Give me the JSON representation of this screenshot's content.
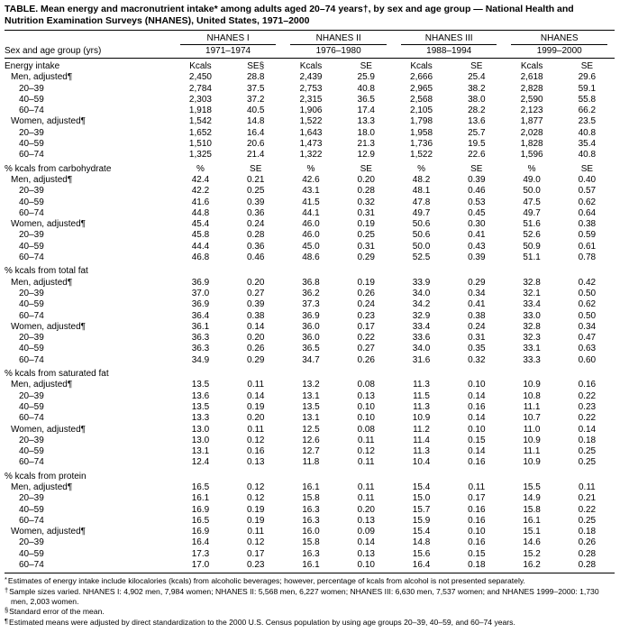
{
  "page": {
    "title": "TABLE. Mean energy and macronutrient intake* among adults aged 20–74 years†, by sex and age group — National Health and Nutrition Examination Surveys (NHANES), United States, 1971–2000"
  },
  "table": {
    "row_header": "Sex and age group (yrs)",
    "groups": [
      {
        "name": "NHANES I",
        "years": "1971–1974"
      },
      {
        "name": "NHANES II",
        "years": "1976–1980"
      },
      {
        "name": "NHANES III",
        "years": "1988–1994"
      },
      {
        "name": "NHANES",
        "years": "1999–2000"
      }
    ],
    "sections": [
      {
        "label": "Energy intake",
        "units": [
          "Kcals",
          "SE§",
          "Kcals",
          "SE",
          "Kcals",
          "SE",
          "Kcals",
          "SE"
        ],
        "rows": [
          {
            "label": "Men, adjusted¶",
            "indent": 1,
            "values": [
              "2,450",
              "28.8",
              "2,439",
              "25.9",
              "2,666",
              "25.4",
              "2,618",
              "29.6"
            ]
          },
          {
            "label": "20–39",
            "indent": 2,
            "values": [
              "2,784",
              "37.5",
              "2,753",
              "40.8",
              "2,965",
              "38.2",
              "2,828",
              "59.1"
            ]
          },
          {
            "label": "40–59",
            "indent": 2,
            "values": [
              "2,303",
              "37.2",
              "2,315",
              "36.5",
              "2,568",
              "38.0",
              "2,590",
              "55.8"
            ]
          },
          {
            "label": "60–74",
            "indent": 2,
            "values": [
              "1,918",
              "40.5",
              "1,906",
              "17.4",
              "2,105",
              "28.2",
              "2,123",
              "66.2"
            ]
          },
          {
            "label": "Women, adjusted¶",
            "indent": 1,
            "values": [
              "1,542",
              "14.8",
              "1,522",
              "13.3",
              "1,798",
              "13.6",
              "1,877",
              "23.5"
            ]
          },
          {
            "label": "20–39",
            "indent": 2,
            "values": [
              "1,652",
              "16.4",
              "1,643",
              "18.0",
              "1,958",
              "25.7",
              "2,028",
              "40.8"
            ]
          },
          {
            "label": "40–59",
            "indent": 2,
            "values": [
              "1,510",
              "20.6",
              "1,473",
              "21.3",
              "1,736",
              "19.5",
              "1,828",
              "35.4"
            ]
          },
          {
            "label": "60–74",
            "indent": 2,
            "values": [
              "1,325",
              "21.4",
              "1,322",
              "12.9",
              "1,522",
              "22.6",
              "1,596",
              "40.8"
            ]
          }
        ]
      },
      {
        "label": "% kcals from carbohydrate",
        "units": [
          "%",
          "SE",
          "%",
          "SE",
          "%",
          "SE",
          "%",
          "SE"
        ],
        "rows": [
          {
            "label": "Men, adjusted¶",
            "indent": 1,
            "values": [
              "42.4",
              "0.21",
              "42.6",
              "0.20",
              "48.2",
              "0.39",
              "49.0",
              "0.40"
            ]
          },
          {
            "label": "20–39",
            "indent": 2,
            "values": [
              "42.2",
              "0.25",
              "43.1",
              "0.28",
              "48.1",
              "0.46",
              "50.0",
              "0.57"
            ]
          },
          {
            "label": "40–59",
            "indent": 2,
            "values": [
              "41.6",
              "0.39",
              "41.5",
              "0.32",
              "47.8",
              "0.53",
              "47.5",
              "0.62"
            ]
          },
          {
            "label": "60–74",
            "indent": 2,
            "values": [
              "44.8",
              "0.36",
              "44.1",
              "0.31",
              "49.7",
              "0.45",
              "49.7",
              "0.64"
            ]
          },
          {
            "label": "Women, adjusted¶",
            "indent": 1,
            "values": [
              "45.4",
              "0.24",
              "46.0",
              "0.19",
              "50.6",
              "0.30",
              "51.6",
              "0.38"
            ]
          },
          {
            "label": "20–39",
            "indent": 2,
            "values": [
              "45.8",
              "0.28",
              "46.0",
              "0.25",
              "50.6",
              "0.41",
              "52.6",
              "0.59"
            ]
          },
          {
            "label": "40–59",
            "indent": 2,
            "values": [
              "44.4",
              "0.36",
              "45.0",
              "0.31",
              "50.0",
              "0.43",
              "50.9",
              "0.61"
            ]
          },
          {
            "label": "60–74",
            "indent": 2,
            "values": [
              "46.8",
              "0.46",
              "48.6",
              "0.29",
              "52.5",
              "0.39",
              "51.1",
              "0.78"
            ]
          }
        ]
      },
      {
        "label": "% kcals from total fat",
        "units": null,
        "rows": [
          {
            "label": "Men, adjusted¶",
            "indent": 1,
            "values": [
              "36.9",
              "0.20",
              "36.8",
              "0.19",
              "33.9",
              "0.29",
              "32.8",
              "0.42"
            ]
          },
          {
            "label": "20–39",
            "indent": 2,
            "values": [
              "37.0",
              "0.27",
              "36.2",
              "0.26",
              "34.0",
              "0.34",
              "32.1",
              "0.50"
            ]
          },
          {
            "label": "40–59",
            "indent": 2,
            "values": [
              "36.9",
              "0.39",
              "37.3",
              "0.24",
              "34.2",
              "0.41",
              "33.4",
              "0.62"
            ]
          },
          {
            "label": "60–74",
            "indent": 2,
            "values": [
              "36.4",
              "0.38",
              "36.9",
              "0.23",
              "32.9",
              "0.38",
              "33.0",
              "0.50"
            ]
          },
          {
            "label": "Women, adjusted¶",
            "indent": 1,
            "values": [
              "36.1",
              "0.14",
              "36.0",
              "0.17",
              "33.4",
              "0.24",
              "32.8",
              "0.34"
            ]
          },
          {
            "label": "20–39",
            "indent": 2,
            "values": [
              "36.3",
              "0.20",
              "36.0",
              "0.22",
              "33.6",
              "0.31",
              "32.3",
              "0.47"
            ]
          },
          {
            "label": "40–59",
            "indent": 2,
            "values": [
              "36.3",
              "0.26",
              "36.5",
              "0.27",
              "34.0",
              "0.35",
              "33.1",
              "0.63"
            ]
          },
          {
            "label": "60–74",
            "indent": 2,
            "values": [
              "34.9",
              "0.29",
              "34.7",
              "0.26",
              "31.6",
              "0.32",
              "33.3",
              "0.60"
            ]
          }
        ]
      },
      {
        "label": "% kcals from saturated fat",
        "units": null,
        "rows": [
          {
            "label": "Men, adjusted¶",
            "indent": 1,
            "values": [
              "13.5",
              "0.11",
              "13.2",
              "0.08",
              "11.3",
              "0.10",
              "10.9",
              "0.16"
            ]
          },
          {
            "label": "20–39",
            "indent": 2,
            "values": [
              "13.6",
              "0.14",
              "13.1",
              "0.13",
              "11.5",
              "0.14",
              "10.8",
              "0.22"
            ]
          },
          {
            "label": "40–59",
            "indent": 2,
            "values": [
              "13.5",
              "0.19",
              "13.5",
              "0.10",
              "11.3",
              "0.16",
              "11.1",
              "0.23"
            ]
          },
          {
            "label": "60–74",
            "indent": 2,
            "values": [
              "13.3",
              "0.20",
              "13.1",
              "0.10",
              "10.9",
              "0.14",
              "10.7",
              "0.22"
            ]
          },
          {
            "label": "Women, adjusted¶",
            "indent": 1,
            "values": [
              "13.0",
              "0.11",
              "12.5",
              "0.08",
              "11.2",
              "0.10",
              "11.0",
              "0.14"
            ]
          },
          {
            "label": "20–39",
            "indent": 2,
            "values": [
              "13.0",
              "0.12",
              "12.6",
              "0.11",
              "11.4",
              "0.15",
              "10.9",
              "0.18"
            ]
          },
          {
            "label": "40–59",
            "indent": 2,
            "values": [
              "13.1",
              "0.16",
              "12.7",
              "0.12",
              "11.3",
              "0.14",
              "11.1",
              "0.25"
            ]
          },
          {
            "label": "60–74",
            "indent": 2,
            "values": [
              "12.4",
              "0.13",
              "11.8",
              "0.11",
              "10.4",
              "0.16",
              "10.9",
              "0.25"
            ]
          }
        ]
      },
      {
        "label": "% kcals from protein",
        "units": null,
        "rows": [
          {
            "label": "Men, adjusted¶",
            "indent": 1,
            "values": [
              "16.5",
              "0.12",
              "16.1",
              "0.11",
              "15.4",
              "0.11",
              "15.5",
              "0.11"
            ]
          },
          {
            "label": "20–39",
            "indent": 2,
            "values": [
              "16.1",
              "0.12",
              "15.8",
              "0.11",
              "15.0",
              "0.17",
              "14.9",
              "0.21"
            ]
          },
          {
            "label": "40–59",
            "indent": 2,
            "values": [
              "16.9",
              "0.19",
              "16.3",
              "0.20",
              "15.7",
              "0.16",
              "15.8",
              "0.22"
            ]
          },
          {
            "label": "60–74",
            "indent": 2,
            "values": [
              "16.5",
              "0.19",
              "16.3",
              "0.13",
              "15.9",
              "0.16",
              "16.1",
              "0.25"
            ]
          },
          {
            "label": "Women, adjusted¶",
            "indent": 1,
            "values": [
              "16.9",
              "0.11",
              "16.0",
              "0.09",
              "15.4",
              "0.10",
              "15.1",
              "0.18"
            ]
          },
          {
            "label": "20–39",
            "indent": 2,
            "values": [
              "16.4",
              "0.12",
              "15.8",
              "0.14",
              "14.8",
              "0.16",
              "14.6",
              "0.26"
            ]
          },
          {
            "label": "40–59",
            "indent": 2,
            "values": [
              "17.3",
              "0.17",
              "16.3",
              "0.13",
              "15.6",
              "0.15",
              "15.2",
              "0.28"
            ]
          },
          {
            "label": "60–74",
            "indent": 2,
            "values": [
              "17.0",
              "0.23",
              "16.1",
              "0.10",
              "16.4",
              "0.18",
              "16.2",
              "0.28"
            ]
          }
        ]
      }
    ]
  },
  "footnotes": [
    {
      "marker": "*",
      "text": "Estimates of energy intake include kilocalories (kcals) from alcoholic beverages; however, percentage of kcals from alcohol is not presented separately."
    },
    {
      "marker": "†",
      "text": "Sample sizes varied. NHANES I: 4,902 men, 7,984 women; NHANES II: 5,568 men, 6,227 women; NHANES III: 6,630 men, 7,537 women; and NHANES 1999–2000: 1,730 men, 2,003 women."
    },
    {
      "marker": "§",
      "text": "Standard error of the mean."
    },
    {
      "marker": "¶",
      "text": "Estimated means were adjusted by direct standardization to the 2000 U.S. Census population by using age groups 20–39, 40–59, and 60–74 years."
    }
  ]
}
